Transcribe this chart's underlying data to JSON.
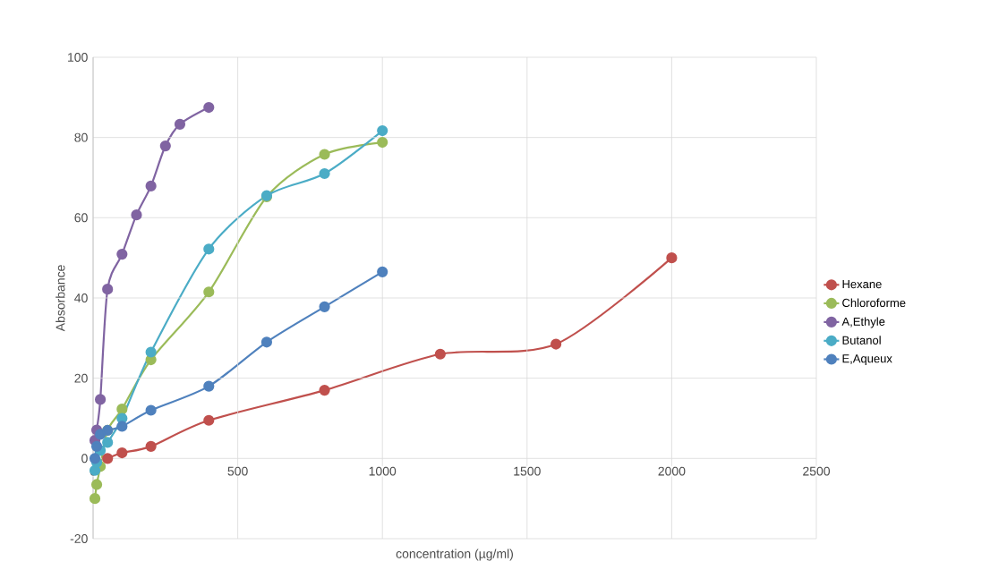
{
  "chart_data": {
    "type": "line",
    "xlabel": "concentration (µg/ml)",
    "ylabel": "Absorbance",
    "xlim": [
      0,
      2500
    ],
    "ylim": [
      -20,
      100
    ],
    "xticks": [
      0,
      500,
      1000,
      1500,
      2000,
      2500
    ],
    "yticks": [
      -20,
      0,
      20,
      40,
      60,
      80,
      100
    ],
    "grid": true,
    "legend": "right",
    "marker": "circle",
    "line_style": "solid",
    "series": [
      {
        "name": "Hexane",
        "color": "#c0504d",
        "x": [
          50,
          100,
          200,
          400,
          800,
          1200,
          1600,
          2000
        ],
        "values": [
          0,
          1.4,
          3,
          9.5,
          17,
          26,
          28.5,
          50
        ]
      },
      {
        "name": "Chloroforme",
        "color": "#9bbb59",
        "x": [
          6.25,
          12.5,
          25,
          50,
          100,
          200,
          400,
          600,
          800,
          1000
        ],
        "values": [
          -10,
          -6.5,
          -2,
          7,
          12.3,
          24.6,
          41.5,
          65.2,
          75.8,
          78.8
        ]
      },
      {
        "name": "A,Ethyle",
        "color": "#8064a2",
        "x": [
          6.25,
          12.5,
          25,
          50,
          100,
          150,
          200,
          250,
          300,
          400
        ],
        "values": [
          4.5,
          7.1,
          14.7,
          42.2,
          50.9,
          60.7,
          67.9,
          77.9,
          83.3,
          87.5
        ]
      },
      {
        "name": "Butanol",
        "color": "#4bacc6",
        "x": [
          6.25,
          12.5,
          25,
          50,
          100,
          200,
          400,
          600,
          800,
          1000
        ],
        "values": [
          -3,
          -1,
          2,
          4,
          10,
          26.5,
          52.2,
          65.5,
          71,
          81.7
        ]
      },
      {
        "name": "E,Aqueux",
        "color": "#4f81bd",
        "x": [
          6.25,
          12.5,
          25,
          50,
          100,
          200,
          400,
          600,
          800,
          1000
        ],
        "values": [
          0,
          3,
          6,
          7,
          8,
          12,
          18,
          29,
          37.8,
          46.5
        ]
      }
    ]
  }
}
